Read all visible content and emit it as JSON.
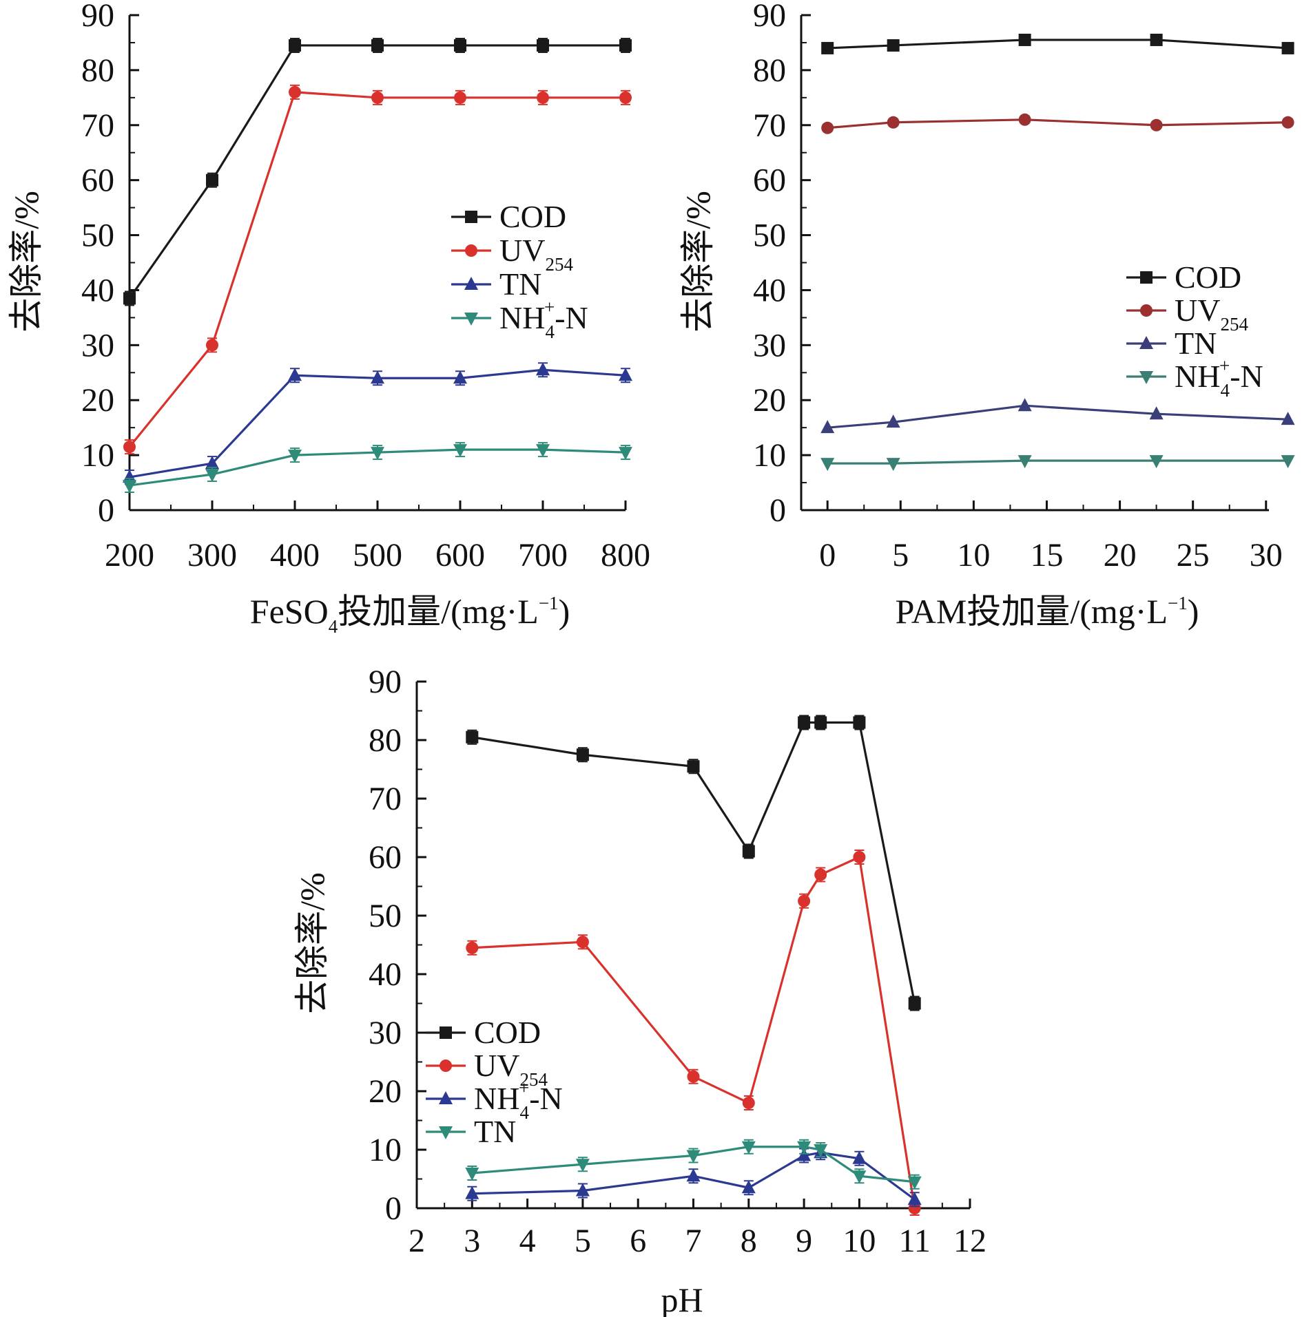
{
  "chart_data": [
    {
      "type": "line",
      "xlabel": {
        "pre": "FeSO",
        "sub": "4",
        "mid": "投加量/(mg·L",
        "sup": "−1",
        "post": ")"
      },
      "ylabel": "去除率/%",
      "x": [
        200,
        300,
        400,
        500,
        600,
        700,
        800
      ],
      "xlim": [
        200,
        800
      ],
      "ylim": [
        0,
        90
      ],
      "xticks": [
        200,
        300,
        400,
        500,
        600,
        700,
        800
      ],
      "yticks": [
        0,
        10,
        20,
        30,
        40,
        50,
        60,
        70,
        80,
        90
      ],
      "legend_position": "center-right",
      "series": [
        {
          "name": "COD",
          "legend": {
            "main": "COD",
            "sub": "",
            "sup": "",
            "post": ""
          },
          "color": "#1a1a1a",
          "marker": "square",
          "values": [
            38.5,
            60,
            84.5,
            84.5,
            84.5,
            84.5,
            84.5
          ]
        },
        {
          "name": "UV254",
          "legend": {
            "main": "UV",
            "sub": "254",
            "sup": "",
            "post": ""
          },
          "color": "#d9312b",
          "marker": "circle",
          "values": [
            11.5,
            30,
            76,
            75,
            75,
            75,
            75
          ]
        },
        {
          "name": "TN",
          "legend": {
            "main": "TN",
            "sub": "",
            "sup": "",
            "post": ""
          },
          "color": "#2b3990",
          "marker": "triangle-up",
          "values": [
            6,
            8.5,
            24.5,
            24,
            24,
            25.5,
            24.5
          ]
        },
        {
          "name": "NH4+-N",
          "legend": {
            "main": "NH",
            "sub": "4",
            "sup": "+",
            "post": "-N"
          },
          "color": "#2e8b7a",
          "marker": "triangle-down",
          "values": [
            4.5,
            6.5,
            10,
            10.5,
            11,
            11,
            10.5
          ]
        }
      ]
    },
    {
      "type": "line",
      "xlabel": {
        "pre": "PAM投加量/(mg·L",
        "sub": "",
        "mid": "",
        "sup": "−1",
        "post": ")"
      },
      "ylabel": "去除率/%",
      "x": [
        0,
        4.5,
        13.5,
        22.5,
        31.5
      ],
      "xlim": [
        -1.8,
        30.2
      ],
      "ylim": [
        0,
        90
      ],
      "xticks": [
        0,
        5,
        10,
        15,
        20,
        25,
        30
      ],
      "yticks": [
        0,
        10,
        20,
        30,
        40,
        50,
        60,
        70,
        80,
        90
      ],
      "legend_position": "center-right",
      "series": [
        {
          "name": "COD",
          "legend": {
            "main": "COD",
            "sub": "",
            "sup": "",
            "post": ""
          },
          "color": "#1a1a1a",
          "marker": "square",
          "values": [
            84,
            84.5,
            85.5,
            85.5,
            84
          ]
        },
        {
          "name": "UV254",
          "legend": {
            "main": "UV",
            "sub": "254",
            "sup": "",
            "post": ""
          },
          "color": "#9a3030",
          "marker": "circle",
          "values": [
            69.5,
            70.5,
            71,
            70,
            70.5
          ]
        },
        {
          "name": "TN",
          "legend": {
            "main": "TN",
            "sub": "",
            "sup": "",
            "post": ""
          },
          "color": "#3a3f7a",
          "marker": "triangle-up",
          "values": [
            15,
            16,
            19,
            17.5,
            16.5
          ]
        },
        {
          "name": "NH4+-N",
          "legend": {
            "main": "NH",
            "sub": "4",
            "sup": "+",
            "post": "-N"
          },
          "color": "#3a7f73",
          "marker": "triangle-down",
          "values": [
            8.5,
            8.5,
            9,
            9,
            9
          ]
        }
      ]
    },
    {
      "type": "line",
      "xlabel": {
        "pre": "pH",
        "sub": "",
        "mid": "",
        "sup": "",
        "post": ""
      },
      "ylabel": "去除率/%",
      "x": [
        3,
        5,
        7,
        8,
        9,
        9.3,
        10,
        11
      ],
      "xlim": [
        2,
        12
      ],
      "ylim": [
        0,
        90
      ],
      "xticks": [
        2,
        3,
        4,
        5,
        6,
        7,
        8,
        9,
        10,
        11,
        12
      ],
      "yticks": [
        0,
        10,
        20,
        30,
        40,
        50,
        60,
        70,
        80,
        90
      ],
      "legend_position": "bottom-left",
      "series": [
        {
          "name": "COD",
          "legend": {
            "main": "COD",
            "sub": "",
            "sup": "",
            "post": ""
          },
          "color": "#1a1a1a",
          "marker": "square",
          "values": [
            80.5,
            77.5,
            75.5,
            61,
            83,
            83,
            83,
            35
          ]
        },
        {
          "name": "UV254",
          "legend": {
            "main": "UV",
            "sub": "254",
            "sup": "",
            "post": ""
          },
          "color": "#d9312b",
          "marker": "circle",
          "values": [
            44.5,
            45.5,
            22.5,
            18,
            52.5,
            57,
            60,
            0
          ]
        },
        {
          "name": "NH4+-N",
          "legend": {
            "main": "NH",
            "sub": "4",
            "sup": "+",
            "post": "-N"
          },
          "color": "#2b3990",
          "marker": "triangle-up",
          "values": [
            2.5,
            3,
            5.5,
            3.5,
            9,
            9.5,
            8.5,
            1.5
          ]
        },
        {
          "name": "TN",
          "legend": {
            "main": "TN",
            "sub": "",
            "sup": "",
            "post": ""
          },
          "color": "#2e8b7a",
          "marker": "triangle-down",
          "values": [
            6,
            7.5,
            9,
            10.5,
            10.5,
            10,
            5.5,
            4.5
          ]
        }
      ]
    }
  ]
}
